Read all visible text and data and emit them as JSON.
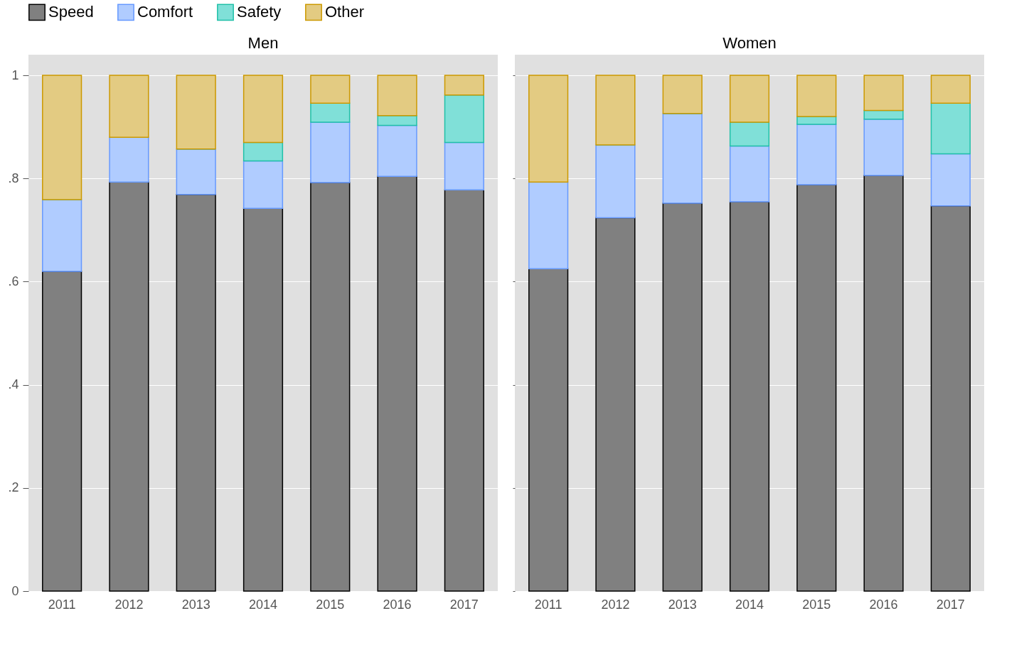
{
  "chart_data": [
    {
      "type": "bar",
      "title": "Men",
      "stacked": true,
      "legend": "top",
      "grid": "y",
      "categories": [
        "2011",
        "2012",
        "2013",
        "2014",
        "2015",
        "2016",
        "2017"
      ],
      "ylim": [
        0,
        1.04
      ],
      "yticks": [
        0,
        {
          "value": 0.2,
          "label": ".2"
        },
        {
          "value": 0.4,
          "label": ".4"
        },
        {
          "value": 0.6,
          "label": ".6"
        },
        {
          "value": 0.8,
          "label": ".8"
        },
        1
      ],
      "series": [
        {
          "name": "Speed",
          "color": "#808080",
          "values": [
            0.62,
            0.793,
            0.769,
            0.742,
            0.792,
            0.804,
            0.778
          ]
        },
        {
          "name": "Comfort",
          "color": "#b0ccff",
          "values": [
            0.139,
            0.087,
            0.088,
            0.092,
            0.117,
            0.099,
            0.092
          ]
        },
        {
          "name": "Safety",
          "color": "#80e0d8",
          "values": [
            0,
            0,
            0,
            0.036,
            0.037,
            0.019,
            0.092
          ]
        },
        {
          "name": "Other",
          "color": "#e3cb82",
          "values": [
            0.241,
            0.12,
            0.143,
            0.13,
            0.054,
            0.078,
            0.038
          ]
        }
      ]
    },
    {
      "type": "bar",
      "title": "Women",
      "stacked": true,
      "grid": "y",
      "tick_labels": "x",
      "categories": [
        "2011",
        "2012",
        "2013",
        "2014",
        "2015",
        "2016",
        "2017"
      ],
      "ylim": [
        0,
        1.04
      ],
      "yticks": [
        {
          "value": 0,
          "label": null
        },
        {
          "value": 0.2,
          "label": null
        },
        {
          "value": 0.4,
          "label": null
        },
        {
          "value": 0.6,
          "label": null
        },
        {
          "value": 0.8,
          "label": null
        },
        {
          "value": 1,
          "label": null
        }
      ],
      "series": [
        {
          "name": "Speed",
          "color": "#808080",
          "values": [
            0.625,
            0.724,
            0.752,
            0.755,
            0.788,
            0.806,
            0.747
          ]
        },
        {
          "name": "Comfort",
          "color": "#b0ccff",
          "values": [
            0.168,
            0.141,
            0.174,
            0.108,
            0.117,
            0.109,
            0.101
          ]
        },
        {
          "name": "Safety",
          "color": "#80e0d8",
          "values": [
            0,
            0,
            0,
            0.046,
            0.015,
            0.017,
            0.098
          ]
        },
        {
          "name": "Other",
          "color": "#e3cb82",
          "values": [
            0.207,
            0.135,
            0.074,
            0.091,
            0.08,
            0.068,
            0.054
          ]
        }
      ]
    }
  ]
}
